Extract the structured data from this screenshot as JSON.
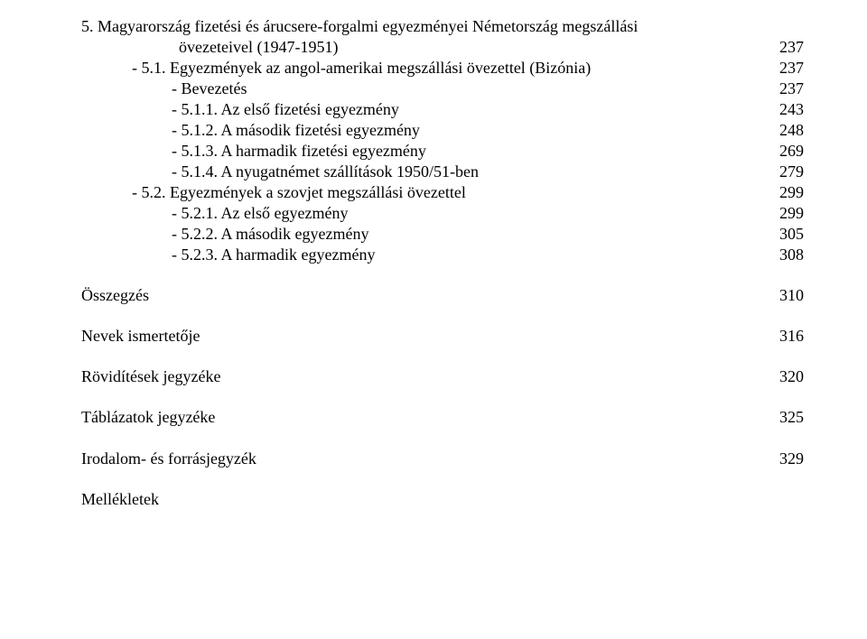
{
  "entries": [
    {
      "level": 0,
      "label_pre": "5. Magyarország fizetési és árucsere-forgalmi egyezményei Németország megszállási",
      "label_cont": "övezeteivel (1947-1951)",
      "page": "237",
      "hanging": true
    },
    {
      "level": 1,
      "label": "- 5.1. Egyezmények az angol-amerikai megszállási övezettel (Bizónia)",
      "page": "237"
    },
    {
      "level": 2,
      "label": "- Bevezetés",
      "page": "237"
    },
    {
      "level": 2,
      "label": "- 5.1.1. Az első fizetési egyezmény",
      "page": "243"
    },
    {
      "level": 2,
      "label": "- 5.1.2. A második fizetési egyezmény",
      "page": "248"
    },
    {
      "level": 2,
      "label": "- 5.1.3. A harmadik fizetési egyezmény",
      "page": "269"
    },
    {
      "level": 2,
      "label": "- 5.1.4. A nyugatnémet szállítások 1950/51-ben",
      "page": "279"
    },
    {
      "level": 1,
      "label": "- 5.2. Egyezmények a szovjet megszállási övezettel",
      "page": "299"
    },
    {
      "level": 2,
      "label": "- 5.2.1. Az első egyezmény",
      "page": "299"
    },
    {
      "level": 2,
      "label": "- 5.2.2. A második egyezmény",
      "page": "305"
    },
    {
      "level": 2,
      "label": "- 5.2.3. A harmadik egyezmény",
      "page": "308"
    }
  ],
  "sections": [
    {
      "label": "Összegzés",
      "page": "310"
    },
    {
      "label": "Nevek ismertetője",
      "page": "316"
    },
    {
      "label": "Rövidítések jegyzéke",
      "page": "320"
    },
    {
      "label": "Táblázatok jegyzéke",
      "page": "325"
    },
    {
      "label": "Irodalom- és forrásjegyzék",
      "page": "329"
    },
    {
      "label": "Mellékletek",
      "page": ""
    }
  ]
}
